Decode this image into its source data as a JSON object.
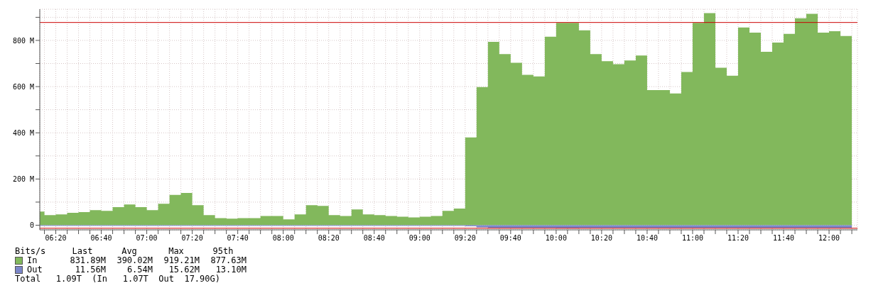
{
  "chart_data": {
    "type": "area",
    "x": [
      6.216,
      6.25,
      6.3333,
      6.4167,
      6.5,
      6.5833,
      6.6667,
      6.75,
      6.8333,
      6.9167,
      7,
      7.0833,
      7.1667,
      7.25,
      7.3333,
      7.4167,
      7.5,
      7.5833,
      7.6667,
      7.75,
      7.8333,
      7.9167,
      8,
      8.0833,
      8.1667,
      8.25,
      8.3333,
      8.4167,
      8.5,
      8.5833,
      8.6667,
      8.75,
      8.8333,
      8.9167,
      9,
      9.0833,
      9.1667,
      9.25,
      9.3333,
      9.4167,
      9.5,
      9.5833,
      9.6667,
      9.75,
      9.8333,
      9.9167,
      10,
      10.0833,
      10.1667,
      10.25,
      10.3333,
      10.4167,
      10.5,
      10.5833,
      10.6667,
      10.75,
      10.8333,
      10.9167,
      11,
      11.0833,
      11.1667,
      11.25,
      11.3333,
      11.4167,
      11.5,
      11.5833,
      11.6667,
      11.75,
      11.8333,
      11.9167,
      12,
      12.0833,
      12.1667
    ],
    "series": [
      {
        "name": "In",
        "color": "#82b85c",
        "values": [
          59,
          44,
          47,
          54,
          57,
          65,
          62,
          78,
          90,
          78,
          65,
          93,
          131,
          140,
          87,
          44,
          31,
          28,
          31,
          31,
          40,
          40,
          25,
          47,
          87,
          84,
          44,
          40,
          68,
          47,
          44,
          40,
          37,
          34,
          37,
          40,
          62,
          72,
          380,
          598,
          794,
          741,
          703,
          651,
          644,
          816,
          876,
          876,
          844,
          741,
          710,
          697,
          713,
          735,
          585,
          585,
          570,
          663,
          876,
          918,
          682,
          647,
          856,
          834,
          751,
          791,
          828,
          896,
          915,
          834,
          840,
          819,
          831
        ]
      },
      {
        "name": "Out",
        "color": "#7b86c8",
        "values": [
          -3,
          -3,
          -3,
          -3,
          -3,
          -3,
          -3,
          -3,
          -3,
          -3,
          -3,
          -3,
          -3,
          -3,
          -3,
          -3,
          -3,
          -3,
          -3,
          -3,
          -3,
          -3,
          -3,
          -3,
          -3,
          -3,
          -3,
          -3,
          -3,
          -3,
          -3,
          -3,
          -3,
          -3,
          -3,
          -3,
          -3,
          -3,
          -5,
          -9,
          -12,
          -12,
          -12,
          -12,
          -12,
          -12,
          -14,
          -14,
          -12,
          -12,
          -12,
          -12,
          -12,
          -12,
          -12,
          -12,
          -12,
          -12,
          -12,
          -12,
          -12,
          -12,
          -12,
          -12,
          -12,
          -12,
          -12,
          -12,
          -12,
          -12,
          -12,
          -12,
          -12
        ]
      }
    ],
    "xlim": [
      6.216,
      12.208
    ],
    "xticks": [
      {
        "value": 6.25,
        "label": null
      },
      {
        "value": 6.3333,
        "label": "06:20"
      },
      {
        "value": 6.4167,
        "label": null
      },
      {
        "value": 6.5,
        "label": null
      },
      {
        "value": 6.5833,
        "label": null
      },
      {
        "value": 6.6667,
        "label": "06:40"
      },
      {
        "value": 6.75,
        "label": null
      },
      {
        "value": 6.8333,
        "label": null
      },
      {
        "value": 6.9167,
        "label": null
      },
      {
        "value": 7,
        "label": "07:00"
      },
      {
        "value": 7.0833,
        "label": null
      },
      {
        "value": 7.1667,
        "label": null
      },
      {
        "value": 7.25,
        "label": null
      },
      {
        "value": 7.3333,
        "label": "07:20"
      },
      {
        "value": 7.4167,
        "label": null
      },
      {
        "value": 7.5,
        "label": null
      },
      {
        "value": 7.5833,
        "label": null
      },
      {
        "value": 7.6667,
        "label": "07:40"
      },
      {
        "value": 7.75,
        "label": null
      },
      {
        "value": 7.8333,
        "label": null
      },
      {
        "value": 7.9167,
        "label": null
      },
      {
        "value": 8,
        "label": "08:00"
      },
      {
        "value": 8.0833,
        "label": null
      },
      {
        "value": 8.1667,
        "label": null
      },
      {
        "value": 8.25,
        "label": null
      },
      {
        "value": 8.3333,
        "label": "08:20"
      },
      {
        "value": 8.4167,
        "label": null
      },
      {
        "value": 8.5,
        "label": null
      },
      {
        "value": 8.5833,
        "label": null
      },
      {
        "value": 8.6667,
        "label": "08:40"
      },
      {
        "value": 8.75,
        "label": null
      },
      {
        "value": 8.8333,
        "label": null
      },
      {
        "value": 8.9167,
        "label": null
      },
      {
        "value": 9,
        "label": "09:00"
      },
      {
        "value": 9.0833,
        "label": null
      },
      {
        "value": 9.1667,
        "label": null
      },
      {
        "value": 9.25,
        "label": null
      },
      {
        "value": 9.3333,
        "label": "09:20"
      },
      {
        "value": 9.4167,
        "label": null
      },
      {
        "value": 9.5,
        "label": null
      },
      {
        "value": 9.5833,
        "label": null
      },
      {
        "value": 9.6667,
        "label": "09:40"
      },
      {
        "value": 9.75,
        "label": null
      },
      {
        "value": 9.8333,
        "label": null
      },
      {
        "value": 9.9167,
        "label": null
      },
      {
        "value": 10,
        "label": "10:00"
      },
      {
        "value": 10.0833,
        "label": null
      },
      {
        "value": 10.1667,
        "label": null
      },
      {
        "value": 10.25,
        "label": null
      },
      {
        "value": 10.3333,
        "label": "10:20"
      },
      {
        "value": 10.4167,
        "label": null
      },
      {
        "value": 10.5,
        "label": null
      },
      {
        "value": 10.5833,
        "label": null
      },
      {
        "value": 10.6667,
        "label": "10:40"
      },
      {
        "value": 10.75,
        "label": null
      },
      {
        "value": 10.8333,
        "label": null
      },
      {
        "value": 10.9167,
        "label": null
      },
      {
        "value": 11,
        "label": "11:00"
      },
      {
        "value": 11.0833,
        "label": null
      },
      {
        "value": 11.1667,
        "label": null
      },
      {
        "value": 11.25,
        "label": null
      },
      {
        "value": 11.3333,
        "label": "11:20"
      },
      {
        "value": 11.4167,
        "label": null
      },
      {
        "value": 11.5,
        "label": null
      },
      {
        "value": 11.5833,
        "label": null
      },
      {
        "value": 11.6667,
        "label": "11:40"
      },
      {
        "value": 11.75,
        "label": null
      },
      {
        "value": 11.8333,
        "label": null
      },
      {
        "value": 11.9167,
        "label": null
      },
      {
        "value": 12,
        "label": "12:00"
      },
      {
        "value": 12.0833,
        "label": null
      },
      {
        "value": 12.1667,
        "label": null
      }
    ],
    "ylim": [
      -20,
      935
    ],
    "yticks": [
      0,
      {
        "value": 100,
        "label": null
      },
      {
        "value": 200,
        "label": "200 M"
      },
      {
        "value": 300,
        "label": null
      },
      {
        "value": 400,
        "label": "400 M"
      },
      {
        "value": 500,
        "label": null
      },
      {
        "value": 600,
        "label": "600 M"
      },
      {
        "value": 700,
        "label": null
      },
      {
        "value": 800,
        "label": "800 M"
      },
      {
        "value": 900,
        "label": null
      }
    ],
    "grid": true,
    "ref_lines": [
      {
        "axis": "y",
        "value": 877.63,
        "color": "#cc0000"
      },
      {
        "axis": "y",
        "value": -13.1,
        "color": "#cc0000"
      }
    ],
    "legend": "bottom left",
    "legend_title": "Bits/s",
    "annotations": [
      "Last",
      "Avg",
      "Max",
      "95th",
      "831.89M",
      "390.02M",
      "919.21M",
      "877.63M",
      "11.56M",
      "6.54M",
      "15.62M",
      "13.10M",
      "Total   1.09T  (In   1.07T  Out  17.90G)"
    ]
  }
}
